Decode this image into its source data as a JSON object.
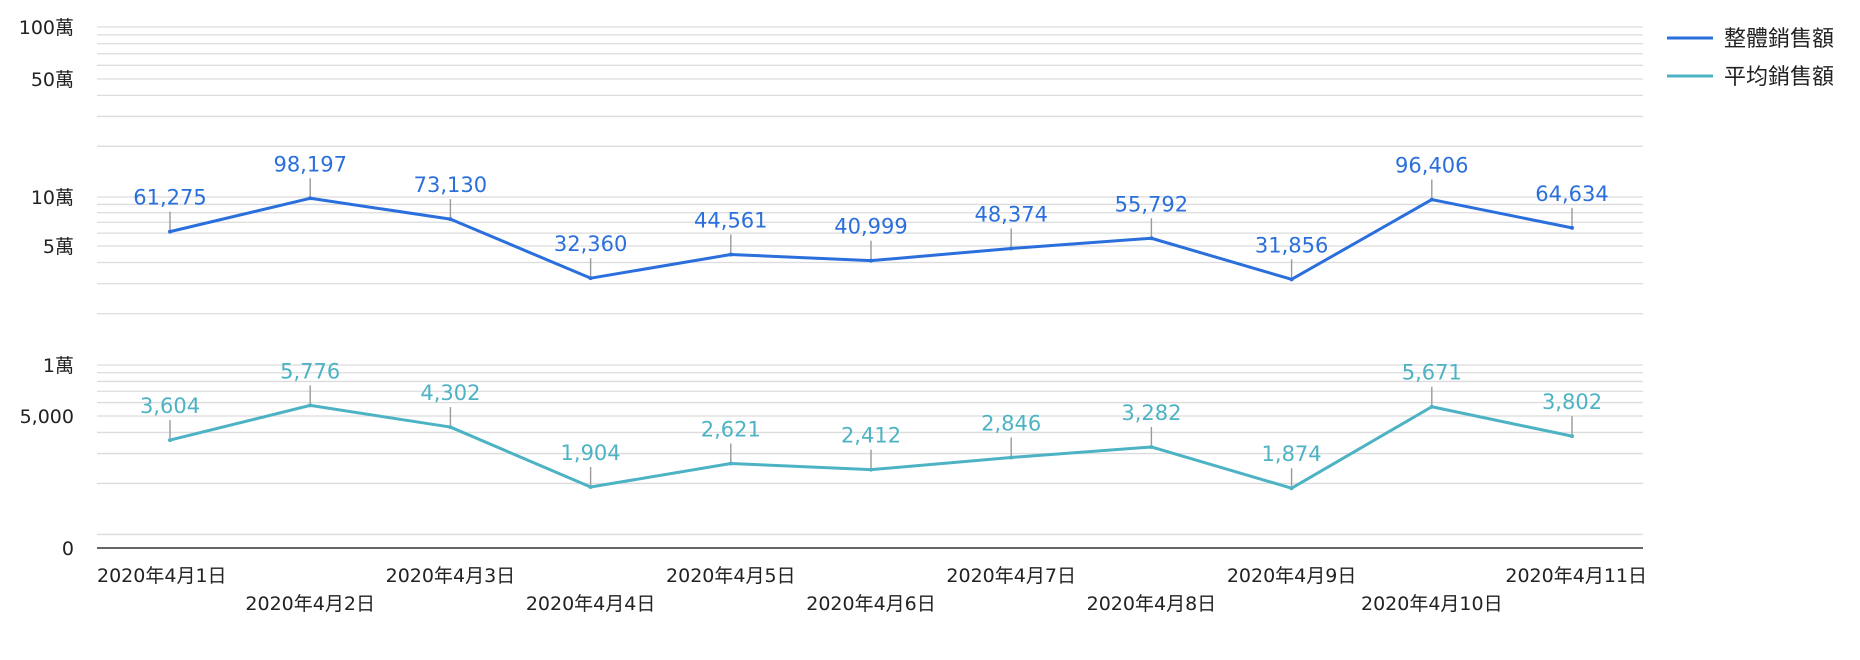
{
  "chart_data": {
    "type": "line",
    "y_scale": "log",
    "categories": [
      "2020年4月1日",
      "2020年4月2日",
      "2020年4月3日",
      "2020年4月4日",
      "2020年4月5日",
      "2020年4月6日",
      "2020年4月7日",
      "2020年4月8日",
      "2020年4月9日",
      "2020年4月10日",
      "2020年4月11日"
    ],
    "series": [
      {
        "name": "整體銷售額",
        "color": "#2a6fdb",
        "values": [
          61275,
          98197,
          73130,
          32360,
          44561,
          40999,
          48374,
          55792,
          31856,
          96406,
          64634
        ],
        "labels": [
          "61,275",
          "98,197",
          "73,130",
          "32,360",
          "44,561",
          "40,999",
          "48,374",
          "55,792",
          "31,856",
          "96,406",
          "64,634"
        ]
      },
      {
        "name": "平均銷售額",
        "color": "#4db3c4",
        "values": [
          3604,
          5776,
          4302,
          1904,
          2621,
          2412,
          2846,
          3282,
          1874,
          5671,
          3802
        ],
        "labels": [
          "3,604",
          "5,776",
          "4,302",
          "1,904",
          "2,621",
          "2,412",
          "2,846",
          "3,282",
          "1,874",
          "5,671",
          "3,802"
        ]
      }
    ],
    "y_ticks": [
      {
        "value": 0,
        "label": "0"
      },
      {
        "value": 5000,
        "label": "5,000"
      },
      {
        "value": 10000,
        "label": "1萬"
      },
      {
        "value": 50000,
        "label": "5萬"
      },
      {
        "value": 100000,
        "label": "10萬"
      },
      {
        "value": 500000,
        "label": "50萬"
      },
      {
        "value": 1000000,
        "label": "100萬"
      }
    ],
    "grid": true,
    "legend_position": "top-right"
  }
}
